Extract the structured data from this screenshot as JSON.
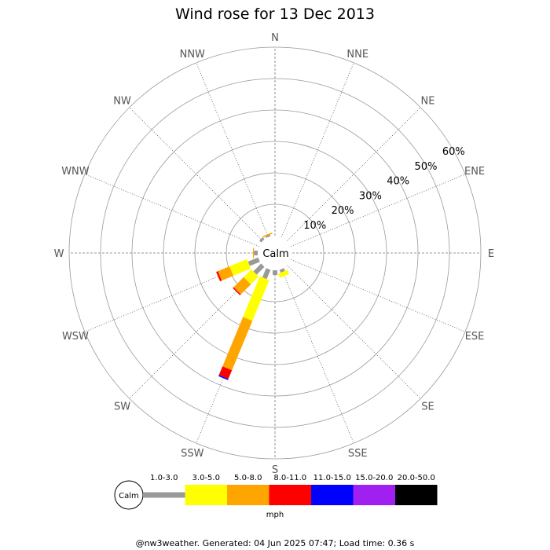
{
  "chart_data": {
    "type": "windrose",
    "title": "Wind rose for 13 Dec 2013",
    "calm_label": "Calm",
    "directions": [
      "N",
      "NNE",
      "NE",
      "ENE",
      "E",
      "ESE",
      "SE",
      "SSE",
      "S",
      "SSW",
      "SW",
      "WSW",
      "W",
      "WNW",
      "NW",
      "NNW"
    ],
    "radial_ticks": [
      10,
      20,
      30,
      40,
      50,
      60
    ],
    "radial_tick_labels": [
      "10%",
      "20%",
      "30%",
      "40%",
      "50%",
      "60%"
    ],
    "r_max": 60,
    "speed_bins": [
      {
        "label": "1.0-3.0",
        "color": "#999999"
      },
      {
        "label": "3.0-5.0",
        "color": "#ffff00"
      },
      {
        "label": "5.0-8.0",
        "color": "#ffa500"
      },
      {
        "label": "8.0-11.0",
        "color": "#ff0000"
      },
      {
        "label": "11.0-15.0",
        "color": "#0000ff"
      },
      {
        "label": "15.0-20.0",
        "color": "#a020f0"
      },
      {
        "label": "20.0-50.0",
        "color": "#000000"
      }
    ],
    "units_label": "mph",
    "series": [
      {
        "direction": "NW",
        "values": [
          0.8,
          0,
          0,
          0,
          0,
          0,
          0
        ]
      },
      {
        "direction": "NNW",
        "values": [
          0.5,
          0,
          0.4,
          0,
          0,
          0,
          0
        ]
      },
      {
        "direction": "W",
        "values": [
          1.2,
          0,
          0.3,
          0,
          0,
          0,
          0
        ]
      },
      {
        "direction": "WSW",
        "values": [
          3.5,
          6.0,
          4.0,
          0.6,
          0,
          0,
          0
        ]
      },
      {
        "direction": "SW",
        "values": [
          3.5,
          3.5,
          4.5,
          0.4,
          0,
          0,
          0
        ]
      },
      {
        "direction": "SSW",
        "values": [
          3.2,
          14.0,
          17.0,
          3.0,
          0.4,
          0,
          0
        ]
      },
      {
        "direction": "S",
        "values": [
          1.5,
          0,
          0,
          0,
          0,
          0,
          0
        ]
      },
      {
        "direction": "SSE",
        "values": [
          1.0,
          1.4,
          0,
          0,
          0,
          0,
          0
        ]
      }
    ]
  },
  "footer": "@nw3weather. Generated: 04 Jun 2025 07:47; Load time: 0.36 s"
}
